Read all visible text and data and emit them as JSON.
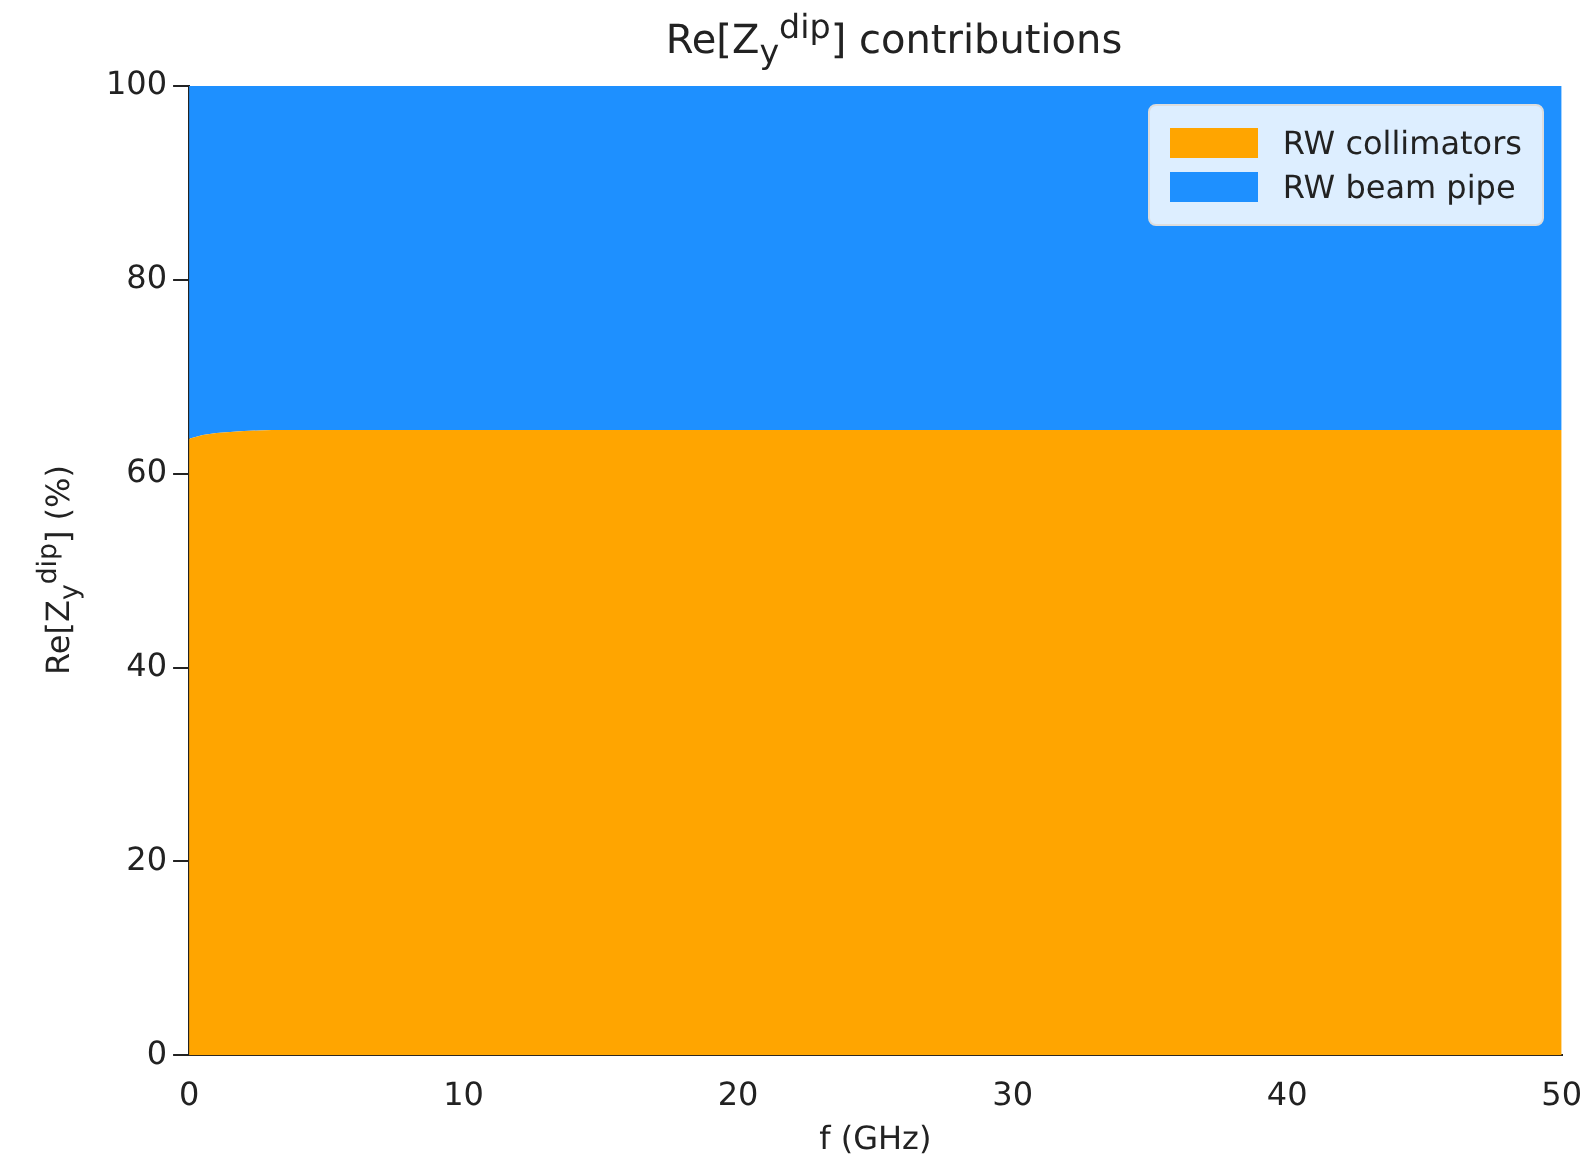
{
  "chart_data": {
    "type": "area",
    "stacked": true,
    "title": "Re[Z$_{y}$$^{dip}$] contributions",
    "xlabel": "f (GHz)",
    "ylabel": "Re[Z$_{y}$$^{dip}$] (%)",
    "x": [
      0,
      0.5,
      1,
      2,
      3,
      5,
      10,
      20,
      30,
      40,
      50
    ],
    "series": [
      {
        "name": "RW collimators",
        "color": "#ffa500",
        "values": [
          63.6,
          64.0,
          64.2,
          64.4,
          64.5,
          64.5,
          64.5,
          64.5,
          64.5,
          64.5,
          64.5
        ]
      },
      {
        "name": "RW beam pipe",
        "color": "#1e90ff",
        "values": [
          36.4,
          36.0,
          35.8,
          35.6,
          35.5,
          35.5,
          35.5,
          35.5,
          35.5,
          35.5,
          35.5
        ]
      }
    ],
    "xlim": [
      0,
      50
    ],
    "xticks": [
      0,
      10,
      20,
      30,
      40,
      50
    ],
    "ylim": [
      0,
      100
    ],
    "yticks": [
      0,
      20,
      40,
      60,
      80,
      100
    ],
    "legend": "top right",
    "grid": false
  }
}
